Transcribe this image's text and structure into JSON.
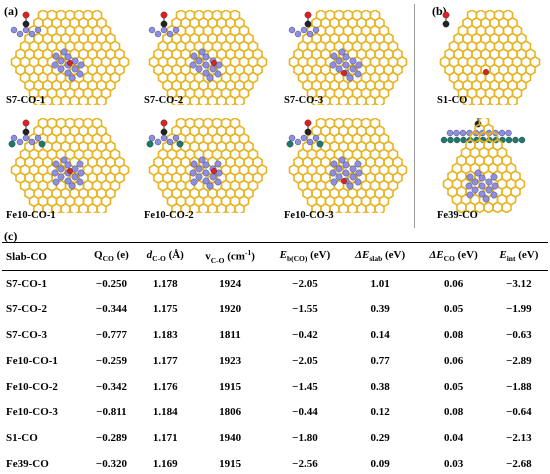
{
  "panels": {
    "a": "(a)",
    "b": "(b)",
    "c": "(c)"
  },
  "structures": [
    {
      "label": "S7-CO-1",
      "layout": "top-view-S7",
      "site": "1"
    },
    {
      "label": "S7-CO-2",
      "layout": "top-view-S7",
      "site": "2"
    },
    {
      "label": "S7-CO-3",
      "layout": "top-view-S7",
      "site": "3"
    },
    {
      "label": "S1-CO",
      "layout": "top-view-S1",
      "site": "1"
    },
    {
      "label": "Fe10-CO-1",
      "layout": "top-view-Fe10",
      "site": "1"
    },
    {
      "label": "Fe10-CO-2",
      "layout": "top-view-Fe10",
      "site": "2"
    },
    {
      "label": "Fe10-CO-3",
      "layout": "top-view-Fe10",
      "site": "3"
    },
    {
      "label": "Fe39-CO",
      "layout": "side-top-Fe39",
      "site": "1"
    }
  ],
  "colors": {
    "graphene": "#e6b422",
    "metal": "#8e8ee6",
    "fe": "#1a7a6e",
    "oxygen": "#e02020",
    "carbon": "#222222"
  },
  "table": {
    "headers": {
      "slab": "Slab-CO",
      "q_main": "Q",
      "q_sub": "CO",
      "q_unit": " (e)",
      "d_main": "d",
      "d_sub": "C-O",
      "d_unit": " (Å)",
      "v_main": "v",
      "v_sub": "C-O",
      "v_unit": " (cm",
      "v_sup": "-1",
      "v_close": ")",
      "eb_main": "E",
      "eb_sub": "b(CO)",
      "eb_unit": " (eV)",
      "es_main": "ΔE",
      "es_sub": "slab",
      "es_unit": " (eV)",
      "eco_main": "ΔE",
      "eco_sub": "CO",
      "eco_unit": " (eV)",
      "ei_main": "E",
      "ei_sub": "int",
      "ei_unit": " (eV)"
    },
    "rows": [
      [
        "S7-CO-1",
        "−0.250",
        "1.178",
        "1924",
        "−2.05",
        "1.01",
        "0.06",
        "−3.12"
      ],
      [
        "S7-CO-2",
        "−0.344",
        "1.175",
        "1920",
        "−1.55",
        "0.39",
        "0.05",
        "−1.99"
      ],
      [
        "S7-CO-3",
        "−0.777",
        "1.183",
        "1811",
        "−0.42",
        "0.14",
        "0.08",
        "−0.63"
      ],
      [
        "Fe10-CO-1",
        "−0.259",
        "1.177",
        "1923",
        "−2.05",
        "0.77",
        "0.06",
        "−2.89"
      ],
      [
        "Fe10-CO-2",
        "−0.342",
        "1.176",
        "1915",
        "−1.45",
        "0.38",
        "0.05",
        "−1.88"
      ],
      [
        "Fe10-CO-3",
        "−0.811",
        "1.184",
        "1806",
        "−0.44",
        "0.12",
        "0.08",
        "−0.64"
      ],
      [
        "S1-CO",
        "−0.289",
        "1.171",
        "1940",
        "−1.80",
        "0.29",
        "0.04",
        "−2.13"
      ],
      [
        "Fe39-CO",
        "−0.320",
        "1.169",
        "1915",
        "−2.56",
        "0.09",
        "0.03",
        "−2.68"
      ]
    ]
  }
}
